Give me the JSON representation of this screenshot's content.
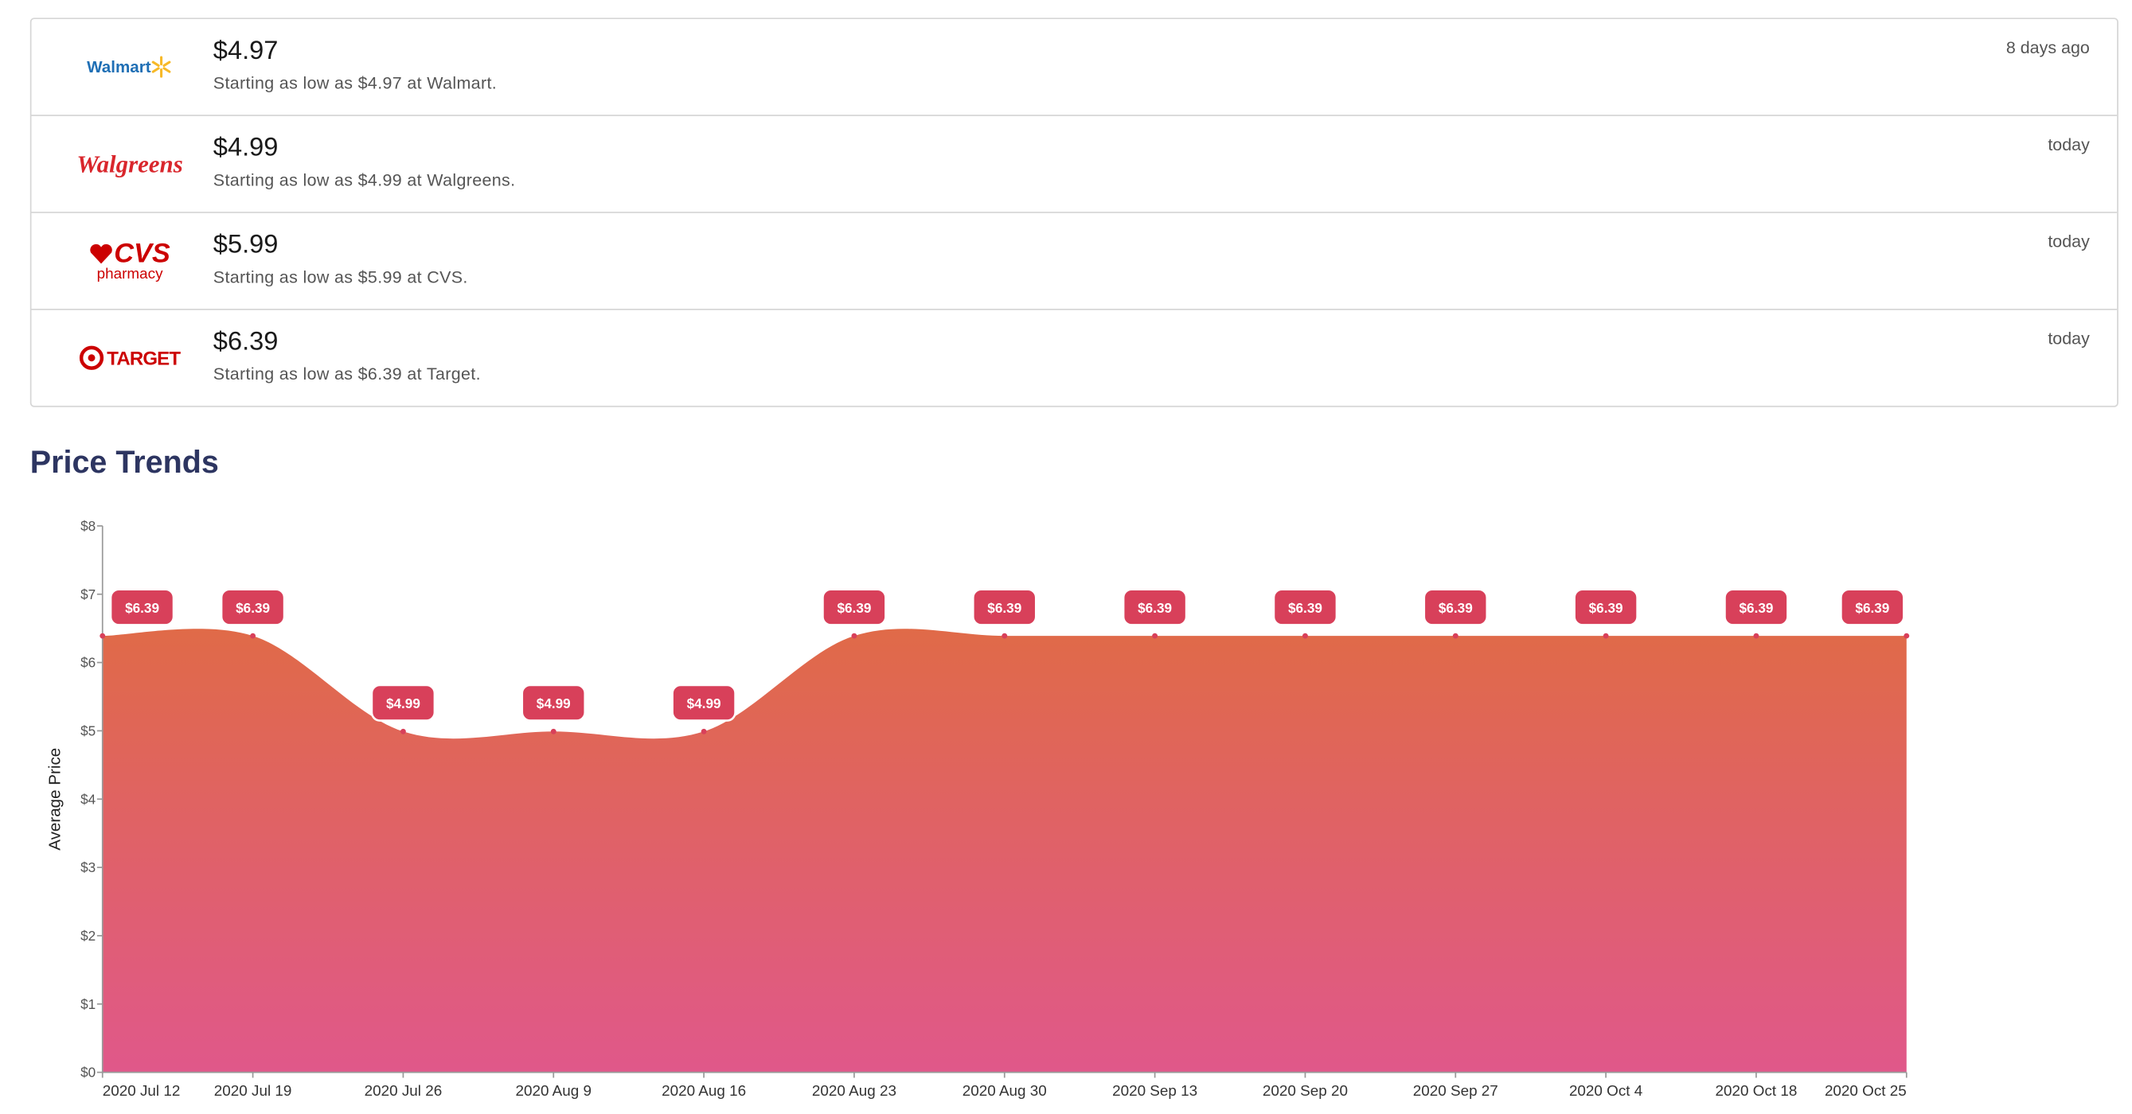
{
  "offers": [
    {
      "store": "Walmart",
      "price": "$4.97",
      "description": "Starting as low as $4.97 at Walmart.",
      "time": "8 days ago"
    },
    {
      "store": "Walgreens",
      "price": "$4.99",
      "description": "Starting as low as $4.99 at Walgreens.",
      "time": "today"
    },
    {
      "store": "CVS",
      "store_sub": "pharmacy",
      "price": "$5.99",
      "description": "Starting as low as $5.99 at CVS.",
      "time": "today"
    },
    {
      "store": "TARGET",
      "price": "$6.39",
      "description": "Starting as low as $6.39 at Target.",
      "time": "today"
    }
  ],
  "chart_data": {
    "type": "area",
    "title": "Price Trends",
    "y_label": "Average Price",
    "categories": [
      "2020 Jul 12",
      "2020 Jul 19",
      "2020 Jul 26",
      "2020 Aug 9",
      "2020 Aug 16",
      "2020 Aug 23",
      "2020 Aug 30",
      "2020 Sep 13",
      "2020 Sep 20",
      "2020 Sep 27",
      "2020 Oct 4",
      "2020 Oct 18",
      "2020 Oct 25"
    ],
    "values": [
      6.39,
      6.39,
      4.99,
      4.99,
      4.99,
      6.39,
      6.39,
      6.39,
      6.39,
      6.39,
      6.39,
      6.39,
      6.39
    ],
    "value_labels": [
      "$6.39",
      "$6.39",
      "$4.99",
      "$4.99",
      "$4.99",
      "$6.39",
      "$6.39",
      "$6.39",
      "$6.39",
      "$6.39",
      "$6.39",
      "$6.39",
      "$6.39"
    ],
    "color_top": "#e06a48",
    "color_bottom": "#e0588a",
    "label_color": "#d8405a",
    "ylim": [
      0,
      8
    ],
    "yticks": [
      {
        "value": 0,
        "label": "$0"
      },
      {
        "value": 1,
        "label": "$1"
      },
      {
        "value": 2,
        "label": "$2"
      },
      {
        "value": 3,
        "label": "$3"
      },
      {
        "value": 4,
        "label": "$4"
      },
      {
        "value": 5,
        "label": "$5"
      },
      {
        "value": 6,
        "label": "$6"
      },
      {
        "value": 7,
        "label": "$7"
      },
      {
        "value": 8,
        "label": "$8"
      }
    ]
  }
}
